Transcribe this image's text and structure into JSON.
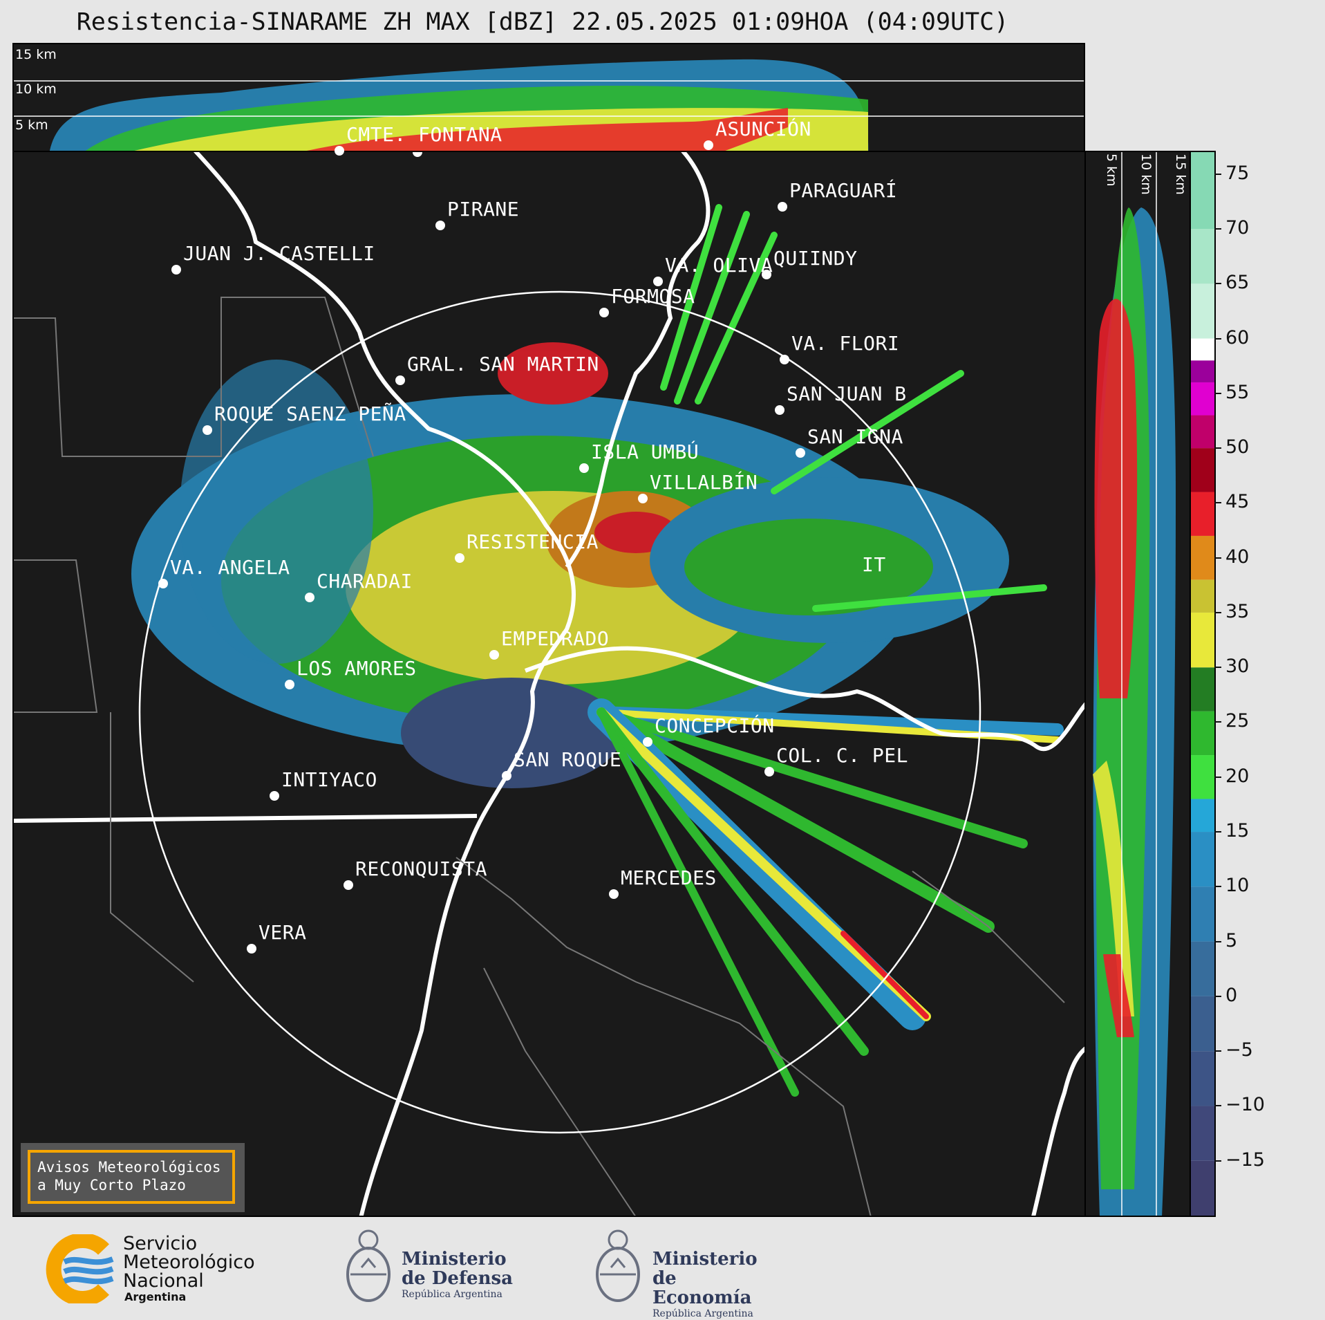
{
  "title": "Resistencia-SINARAME ZH MAX [dBZ] 22.05.2025 01:09HOA (04:09UTC)",
  "top_panel": {
    "height_labels": [
      "15 km",
      "10 km",
      "5 km"
    ]
  },
  "side_panel": {
    "height_labels": [
      "5 km",
      "10 km",
      "15 km"
    ]
  },
  "places": [
    {
      "name": "CMTE. FONTANA"
    },
    {
      "name": "ASUNCIÓN"
    },
    {
      "name": "PARAGUARÍ"
    },
    {
      "name": "PIRANE"
    },
    {
      "name": "JUAN J. CASTELLI"
    },
    {
      "name": "VA. OLIVA"
    },
    {
      "name": "QUIINDY"
    },
    {
      "name": "FORMOSA"
    },
    {
      "name": "VA. FLORI"
    },
    {
      "name": "GRAL. SAN MARTIN"
    },
    {
      "name": "SAN JUAN B"
    },
    {
      "name": "ROQUE SAENZ PEÑA"
    },
    {
      "name": "SAN IGNA"
    },
    {
      "name": "ISLA UMBÚ"
    },
    {
      "name": "VILLALBÍN"
    },
    {
      "name": "RESISTENCIA"
    },
    {
      "name": "VA. ANGELA"
    },
    {
      "name": "CHARADAI"
    },
    {
      "name": "IT"
    },
    {
      "name": "EMPEDRADO"
    },
    {
      "name": "LOS AMORES"
    },
    {
      "name": "CONCEPCIÓN"
    },
    {
      "name": "COL. C. PEL"
    },
    {
      "name": "SAN ROQUE"
    },
    {
      "name": "INTIYACO"
    },
    {
      "name": "RECONQUISTA"
    },
    {
      "name": "MERCEDES"
    },
    {
      "name": "VERA"
    }
  ],
  "colorbar": {
    "unit": "dBZ",
    "ticks": [
      "75",
      "70",
      "65",
      "60",
      "55",
      "50",
      "45",
      "40",
      "35",
      "30",
      "25",
      "20",
      "15",
      "10",
      "5",
      "0",
      "−5",
      "−10",
      "−15"
    ],
    "bands": [
      {
        "from": -20,
        "to": -15,
        "color": "#3f3f6e"
      },
      {
        "from": -15,
        "to": -10,
        "color": "#40487a"
      },
      {
        "from": -10,
        "to": -5,
        "color": "#3d5486"
      },
      {
        "from": -5,
        "to": 0,
        "color": "#3b5f8f"
      },
      {
        "from": 0,
        "to": 5,
        "color": "#376d9c"
      },
      {
        "from": 5,
        "to": 10,
        "color": "#2f7fb2"
      },
      {
        "from": 10,
        "to": 15,
        "color": "#2a8fc4"
      },
      {
        "from": 15,
        "to": 18,
        "color": "#25a7d8"
      },
      {
        "from": 18,
        "to": 22,
        "color": "#3fe03f"
      },
      {
        "from": 22,
        "to": 26,
        "color": "#2fb82f"
      },
      {
        "from": 26,
        "to": 30,
        "color": "#237d23"
      },
      {
        "from": 30,
        "to": 35,
        "color": "#e8e83a"
      },
      {
        "from": 35,
        "to": 38,
        "color": "#c9c232"
      },
      {
        "from": 38,
        "to": 42,
        "color": "#e08a1a"
      },
      {
        "from": 42,
        "to": 46,
        "color": "#e81f2a"
      },
      {
        "from": 46,
        "to": 50,
        "color": "#a0001a"
      },
      {
        "from": 50,
        "to": 53,
        "color": "#c0006a"
      },
      {
        "from": 53,
        "to": 56,
        "color": "#e000d0"
      },
      {
        "from": 56,
        "to": 58,
        "color": "#9b009b"
      },
      {
        "from": 58,
        "to": 60,
        "color": "#ffffff"
      },
      {
        "from": 60,
        "to": 65,
        "color": "#c8f0dc"
      },
      {
        "from": 65,
        "to": 70,
        "color": "#a8e6c8"
      },
      {
        "from": 70,
        "to": 77,
        "color": "#86d9b4"
      }
    ]
  },
  "avisos": {
    "line1": "Avisos Meteorológicos",
    "line2": "a Muy Corto Plazo"
  },
  "logos": {
    "smn": {
      "line1": "Servicio",
      "line2": "Meteorológico",
      "line3": "Nacional",
      "line4": "Argentina"
    },
    "defensa": {
      "line1": "Ministerio",
      "line2": "de Defensa",
      "line3": "República Argentina"
    },
    "economia": {
      "line1": "Ministerio",
      "line2": "de Economía",
      "line3": "República Argentina"
    }
  },
  "colors": {
    "background": "#e6e6e6",
    "panel": "#1a1a1a",
    "label": "#ffffff",
    "accent": "#f5a500"
  }
}
